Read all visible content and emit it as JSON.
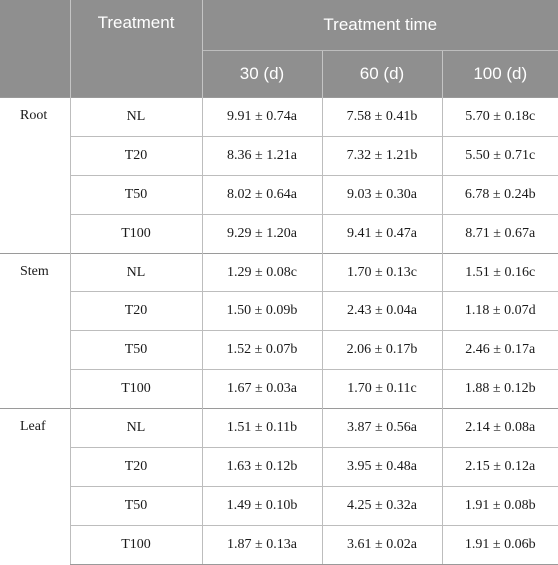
{
  "header": {
    "treatment": "Treatment",
    "treatment_time": "Treatment time",
    "times": [
      "30 (d)",
      "60 (d)",
      "100 (d)"
    ]
  },
  "groups": [
    {
      "name": "Root",
      "rows": [
        {
          "treatment": "NL",
          "d30": "9.91 ± 0.74a",
          "d60": "7.58 ± 0.41b",
          "d100": "5.70 ± 0.18c"
        },
        {
          "treatment": "T20",
          "d30": "8.36 ± 1.21a",
          "d60": "7.32 ± 1.21b",
          "d100": "5.50 ± 0.71c"
        },
        {
          "treatment": "T50",
          "d30": "8.02 ± 0.64a",
          "d60": "9.03 ± 0.30a",
          "d100": "6.78 ± 0.24b"
        },
        {
          "treatment": "T100",
          "d30": "9.29 ± 1.20a",
          "d60": "9.41 ± 0.47a",
          "d100": "8.71 ± 0.67a"
        }
      ]
    },
    {
      "name": "Stem",
      "rows": [
        {
          "treatment": "NL",
          "d30": "1.29 ± 0.08c",
          "d60": "1.70 ± 0.13c",
          "d100": "1.51 ± 0.16c"
        },
        {
          "treatment": "T20",
          "d30": "1.50 ± 0.09b",
          "d60": "2.43 ± 0.04a",
          "d100": "1.18 ± 0.07d"
        },
        {
          "treatment": "T50",
          "d30": "1.52 ± 0.07b",
          "d60": "2.06 ± 0.17b",
          "d100": "2.46 ± 0.17a"
        },
        {
          "treatment": "T100",
          "d30": "1.67 ± 0.03a",
          "d60": "1.70 ± 0.11c",
          "d100": "1.88 ± 0.12b"
        }
      ]
    },
    {
      "name": "Leaf",
      "rows": [
        {
          "treatment": "NL",
          "d30": "1.51 ± 0.11b",
          "d60": "3.87 ± 0.56a",
          "d100": "2.14 ± 0.08a"
        },
        {
          "treatment": "T20",
          "d30": "1.63 ± 0.12b",
          "d60": "3.95 ± 0.48a",
          "d100": "2.15 ± 0.12a"
        },
        {
          "treatment": "T50",
          "d30": "1.49 ± 0.10b",
          "d60": "4.25 ± 0.32a",
          "d100": "1.91 ± 0.08b"
        },
        {
          "treatment": "T100",
          "d30": "1.87 ± 0.13a",
          "d60": "3.61 ± 0.02a",
          "d100": "1.91 ± 0.06b"
        }
      ]
    }
  ]
}
